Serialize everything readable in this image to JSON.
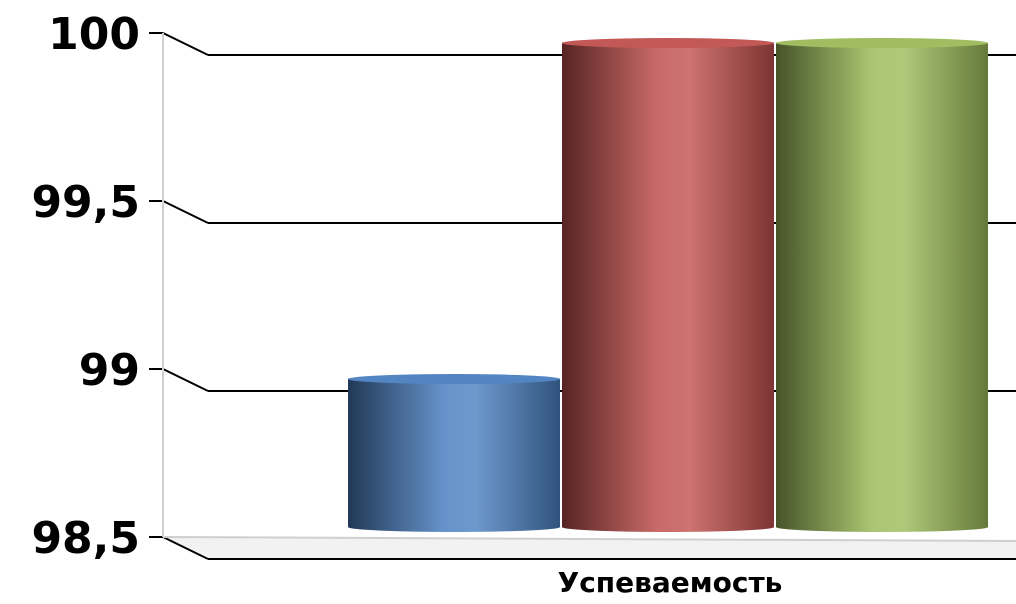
{
  "chart_data": {
    "type": "bar",
    "categories": [
      "Успеваемость"
    ],
    "series": [
      {
        "values": [
          99.0
        ],
        "color": "#4a7fc0"
      },
      {
        "values": [
          100.0
        ],
        "color": "#c0504d"
      },
      {
        "values": [
          100.0
        ],
        "color": "#9bbb59"
      }
    ],
    "y_ticks": [
      100,
      99.5,
      99,
      98.5
    ],
    "y_tick_labels": [
      "100",
      "99,5",
      "99",
      "98,5"
    ],
    "ylim": [
      98.5,
      100
    ],
    "grid": true,
    "style": "3d-cylinder"
  }
}
